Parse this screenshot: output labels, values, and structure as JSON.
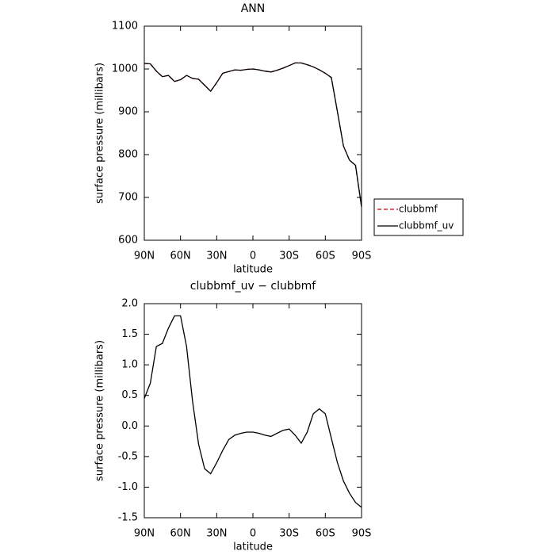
{
  "chart_data": [
    {
      "type": "line",
      "title": "ANN",
      "xlabel": "latitude",
      "ylabel": "surface pressure (millibars)",
      "x": [
        90,
        85,
        80,
        75,
        70,
        65,
        60,
        55,
        50,
        45,
        40,
        35,
        30,
        25,
        20,
        15,
        10,
        5,
        0,
        -5,
        -10,
        -15,
        -20,
        -25,
        -30,
        -35,
        -40,
        -45,
        -50,
        -55,
        -60,
        -65,
        -70,
        -75,
        -80,
        -85,
        -90
      ],
      "series": [
        {
          "name": "clubbmf",
          "color": "#cc0000",
          "line_style": "dashed",
          "values": [
            1013,
            1012,
            995,
            982,
            985,
            971,
            975,
            985,
            978,
            976,
            962,
            948,
            968,
            990,
            994,
            998,
            997,
            999,
            1000,
            998,
            995,
            993,
            997,
            1002,
            1008,
            1014,
            1014,
            1010,
            1005,
            998,
            990,
            980,
            900,
            820,
            787,
            775,
            678
          ]
        },
        {
          "name": "clubbmf_uv",
          "color": "#000000",
          "line_style": "solid",
          "values": [
            1013,
            1012,
            995,
            982,
            985,
            971,
            975,
            985,
            978,
            976,
            962,
            948,
            968,
            990,
            994,
            998,
            997,
            999,
            1000,
            998,
            995,
            993,
            997,
            1002,
            1008,
            1014,
            1014,
            1010,
            1005,
            998,
            990,
            980,
            900,
            820,
            787,
            775,
            678
          ]
        }
      ],
      "xlim": [
        90,
        -90
      ],
      "xticks": [
        {
          "value": 90,
          "label": "90N"
        },
        {
          "value": 60,
          "label": "60N"
        },
        {
          "value": 30,
          "label": "30N"
        },
        0,
        {
          "value": -30,
          "label": "30S"
        },
        {
          "value": -60,
          "label": "60S"
        },
        {
          "value": -90,
          "label": "90S"
        }
      ],
      "ylim": [
        600,
        1100
      ],
      "yticks": [
        600,
        700,
        800,
        900,
        1000,
        1100
      ],
      "legend": "right"
    },
    {
      "type": "line",
      "title": "clubbmf_uv − clubbmf",
      "xlabel": "latitude",
      "ylabel": "surface pressure (millibars)",
      "x": [
        90,
        85,
        80,
        75,
        70,
        65,
        60,
        55,
        50,
        45,
        40,
        35,
        30,
        25,
        20,
        15,
        10,
        5,
        0,
        -5,
        -10,
        -15,
        -20,
        -25,
        -30,
        -35,
        -40,
        -45,
        -50,
        -55,
        -60,
        -65,
        -70,
        -75,
        -80,
        -85,
        -90
      ],
      "series": [
        {
          "color": "#000000",
          "line_style": "solid",
          "values": [
            0.45,
            0.7,
            1.3,
            1.35,
            1.6,
            1.8,
            1.8,
            1.3,
            0.4,
            -0.3,
            -0.7,
            -0.78,
            -0.6,
            -0.4,
            -0.22,
            -0.15,
            -0.12,
            -0.1,
            -0.1,
            -0.12,
            -0.15,
            -0.17,
            -0.12,
            -0.07,
            -0.05,
            -0.15,
            -0.28,
            -0.1,
            0.2,
            0.28,
            0.2,
            -0.2,
            -0.6,
            -0.9,
            -1.1,
            -1.25,
            -1.33
          ]
        }
      ],
      "xlim": [
        90,
        -90
      ],
      "xticks": [
        {
          "value": 90,
          "label": "90N"
        },
        {
          "value": 60,
          "label": "60N"
        },
        {
          "value": 30,
          "label": "30N"
        },
        0,
        {
          "value": -30,
          "label": "30S"
        },
        {
          "value": -60,
          "label": "60S"
        },
        {
          "value": -90,
          "label": "90S"
        }
      ],
      "ylim": [
        -1.5,
        2
      ],
      "yticks": [
        -1.5,
        {
          "value": -1,
          "label": "-1.0"
        },
        -0.5,
        {
          "value": 0,
          "label": "0.0"
        },
        0.5,
        {
          "value": 1,
          "label": "1.0"
        },
        1.5,
        {
          "value": 2,
          "label": "2.0"
        }
      ]
    }
  ]
}
